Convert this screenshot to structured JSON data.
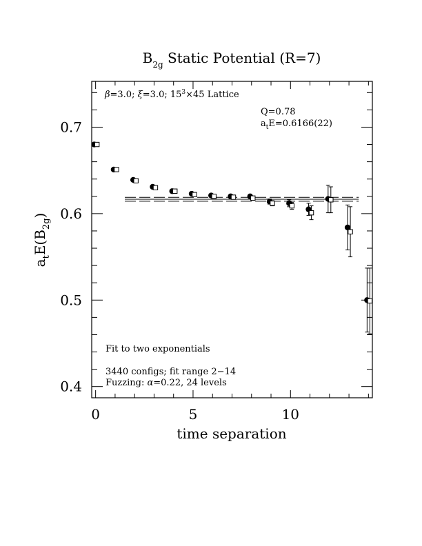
{
  "chart_data": {
    "type": "scatter",
    "title": {
      "main": "B",
      "sub": "2g",
      "rest": " Static Potential (R=7)"
    },
    "xlabel": "time separation",
    "ylabel": {
      "prefix": "a",
      "prefix_sub": "t",
      "mid": "E(B",
      "mid_sub": "2g",
      "suffix": ")"
    },
    "xlim": [
      -0.2,
      14.2
    ],
    "ylim": [
      0.387,
      0.753
    ],
    "x_ticks": [
      0,
      5,
      10
    ],
    "x_tick_labels": [
      "0",
      "5",
      "10"
    ],
    "y_ticks": [
      0.4,
      0.5,
      0.6,
      0.7
    ],
    "y_tick_labels": [
      "0.4",
      "0.5",
      "0.6",
      "0.7"
    ],
    "grid": false,
    "annotations": {
      "lattice": {
        "beta": "β",
        "beta_val": "=3.0; ",
        "xi": "ξ",
        "xi_val": "=3.0; 15",
        "sup": "3",
        "rest": "×45 Lattice"
      },
      "q_value": "Q=0.78",
      "energy": {
        "prefix": "a",
        "sub": "t",
        "rest": "E=0.6166(22)"
      },
      "fit_type": "Fit to two exponentials",
      "configs": "3440 configs; fit range 2−14",
      "fuzzing": {
        "prefix": "Fuzzing: ",
        "alpha": "α",
        "rest": "=0.22, 24 levels"
      }
    },
    "fit": {
      "x_range": [
        1.5,
        13.5
      ],
      "value": 0.6166,
      "error": 0.0022
    },
    "series": [
      {
        "marker": "filled-circle",
        "x": [
          0,
          1,
          2,
          3,
          4,
          5,
          6,
          7,
          8,
          9,
          10,
          11,
          12,
          13,
          14
        ],
        "y": [
          0.68,
          0.651,
          0.639,
          0.631,
          0.626,
          0.623,
          0.621,
          0.62,
          0.62,
          0.614,
          0.612,
          0.605,
          0.617,
          0.584,
          0.5
        ],
        "err": [
          0.001,
          0.001,
          0.001,
          0.001,
          0.001,
          0.001,
          0.001,
          0.001,
          0.002,
          0.003,
          0.004,
          0.007,
          0.016,
          0.026,
          0.037
        ]
      },
      {
        "marker": "open-square",
        "x": [
          0,
          1,
          2,
          3,
          4,
          5,
          6,
          7,
          8,
          9,
          10,
          11,
          12,
          13,
          14
        ],
        "y": [
          0.68,
          0.651,
          0.638,
          0.63,
          0.626,
          0.622,
          0.62,
          0.619,
          0.618,
          0.612,
          0.609,
          0.601,
          0.616,
          0.579,
          0.499
        ],
        "err": [
          0.001,
          0.001,
          0.001,
          0.001,
          0.001,
          0.001,
          0.001,
          0.001,
          0.002,
          0.003,
          0.004,
          0.008,
          0.015,
          0.029,
          0.038
        ]
      }
    ]
  }
}
